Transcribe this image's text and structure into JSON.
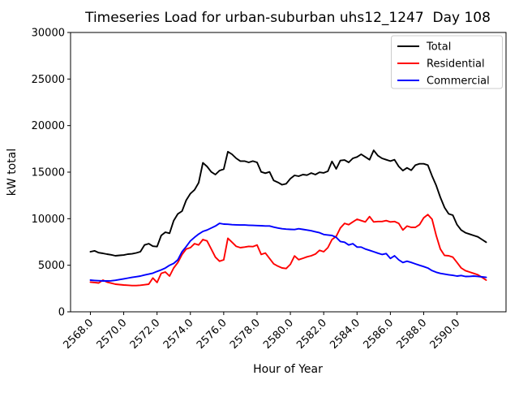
{
  "figure": {
    "background": "#ffffff"
  },
  "chart_data": {
    "type": "line",
    "title": "Timeseries Load for urban-suburban uhs12_1247  Day 108",
    "xlabel": "Hour of Year",
    "ylabel": "kW total",
    "xlim": [
      2566.81,
      2592.94
    ],
    "ylim": [
      0,
      30000
    ],
    "grid": false,
    "x_tick_rotation_deg": 45,
    "x_ticks": [
      2568,
      2570,
      2572,
      2574,
      2576,
      2578,
      2580,
      2582,
      2584,
      2586,
      2588,
      2590
    ],
    "x_tick_labels": [
      "2568.0",
      "2570.0",
      "2572.0",
      "2574.0",
      "2576.0",
      "2578.0",
      "2580.0",
      "2582.0",
      "2584.0",
      "2586.0",
      "2588.0",
      "2590.0"
    ],
    "y_ticks": [
      0,
      5000,
      10000,
      15000,
      20000,
      25000,
      30000
    ],
    "y_tick_labels": [
      "0",
      "5000",
      "10000",
      "15000",
      "20000",
      "25000",
      "30000"
    ],
    "legend": {
      "position": "upper right",
      "entries": [
        "Total",
        "Residential",
        "Commercial"
      ]
    },
    "x": [
      2568.0,
      2568.25,
      2568.5,
      2568.75,
      2569.0,
      2569.25,
      2569.5,
      2569.75,
      2570.0,
      2570.25,
      2570.5,
      2570.75,
      2571.0,
      2571.25,
      2571.5,
      2571.75,
      2572.0,
      2572.25,
      2572.5,
      2572.75,
      2573.0,
      2573.25,
      2573.5,
      2573.75,
      2574.0,
      2574.25,
      2574.5,
      2574.75,
      2575.0,
      2575.25,
      2575.5,
      2575.75,
      2576.0,
      2576.25,
      2576.5,
      2576.75,
      2577.0,
      2577.25,
      2577.5,
      2577.75,
      2578.0,
      2578.25,
      2578.5,
      2578.75,
      2579.0,
      2579.25,
      2579.5,
      2579.75,
      2580.0,
      2580.25,
      2580.5,
      2580.75,
      2581.0,
      2581.25,
      2581.5,
      2581.75,
      2582.0,
      2582.25,
      2582.5,
      2582.75,
      2583.0,
      2583.25,
      2583.5,
      2583.75,
      2584.0,
      2584.25,
      2584.5,
      2584.75,
      2585.0,
      2585.25,
      2585.5,
      2585.75,
      2586.0,
      2586.25,
      2586.5,
      2586.75,
      2587.0,
      2587.25,
      2587.5,
      2587.75,
      2588.0,
      2588.25,
      2588.5,
      2588.75,
      2589.0,
      2589.25,
      2589.5,
      2589.75,
      2590.0,
      2590.25,
      2590.5,
      2590.75,
      2591.0,
      2591.25,
      2591.5,
      2591.75
    ],
    "series": [
      {
        "name": "Total",
        "color": "#000000",
        "values": [
          6450,
          6550,
          6350,
          6280,
          6190,
          6120,
          6020,
          6060,
          6100,
          6190,
          6230,
          6320,
          6450,
          7180,
          7320,
          7050,
          7000,
          8200,
          8550,
          8430,
          9790,
          10520,
          10810,
          11980,
          12700,
          13100,
          13870,
          16000,
          15610,
          15030,
          14740,
          15170,
          15320,
          17200,
          16920,
          16480,
          16190,
          16190,
          16050,
          16190,
          16050,
          15030,
          14890,
          15030,
          14100,
          13900,
          13650,
          13750,
          14300,
          14650,
          14560,
          14740,
          14680,
          14900,
          14740,
          14980,
          14920,
          15100,
          16150,
          15350,
          16250,
          16300,
          16050,
          16480,
          16630,
          16920,
          16630,
          16330,
          17350,
          16770,
          16480,
          16330,
          16190,
          16330,
          15610,
          15170,
          15460,
          15200,
          15750,
          15900,
          15900,
          15750,
          14590,
          13570,
          12300,
          11200,
          10520,
          10380,
          9360,
          8780,
          8490,
          8350,
          8200,
          8050,
          7760,
          7470
        ]
      },
      {
        "name": "Residential",
        "color": "#ff0000",
        "values": [
          3190,
          3150,
          3100,
          3400,
          3190,
          3080,
          2965,
          2920,
          2880,
          2850,
          2815,
          2815,
          2850,
          2900,
          2965,
          3630,
          3150,
          4130,
          4270,
          3835,
          4710,
          5290,
          6160,
          6740,
          6890,
          7320,
          7180,
          7760,
          7615,
          6740,
          5870,
          5430,
          5580,
          7900,
          7470,
          7030,
          6890,
          6950,
          7030,
          7000,
          7180,
          6160,
          6310,
          5730,
          5150,
          4900,
          4710,
          4650,
          5100,
          6000,
          5600,
          5750,
          5900,
          6020,
          6200,
          6600,
          6450,
          6890,
          7760,
          8100,
          9000,
          9500,
          9360,
          9650,
          9940,
          9790,
          9650,
          10230,
          9650,
          9700,
          9700,
          9790,
          9650,
          9700,
          9500,
          8780,
          9210,
          9070,
          9070,
          9360,
          10090,
          10450,
          9940,
          8200,
          6740,
          6050,
          6020,
          5870,
          5290,
          4710,
          4420,
          4270,
          4125,
          3980,
          3700,
          3400
        ]
      },
      {
        "name": "Commercial",
        "color": "#0000ff",
        "values": [
          3400,
          3370,
          3340,
          3310,
          3310,
          3330,
          3380,
          3460,
          3545,
          3620,
          3700,
          3770,
          3835,
          3950,
          4050,
          4150,
          4330,
          4500,
          4700,
          5000,
          5200,
          5580,
          6450,
          7000,
          7615,
          8000,
          8345,
          8630,
          8780,
          9000,
          9210,
          9500,
          9420,
          9400,
          9360,
          9340,
          9320,
          9320,
          9300,
          9280,
          9260,
          9240,
          9220,
          9215,
          9100,
          9000,
          8920,
          8880,
          8850,
          8835,
          8920,
          8850,
          8780,
          8700,
          8600,
          8490,
          8300,
          8250,
          8200,
          8000,
          7550,
          7470,
          7180,
          7320,
          6950,
          6950,
          6740,
          6600,
          6450,
          6300,
          6160,
          6250,
          5730,
          6020,
          5580,
          5290,
          5435,
          5300,
          5145,
          5000,
          4855,
          4700,
          4420,
          4250,
          4125,
          4050,
          3980,
          3920,
          3835,
          3900,
          3790,
          3800,
          3835,
          3800,
          3750,
          3700
        ]
      }
    ]
  }
}
